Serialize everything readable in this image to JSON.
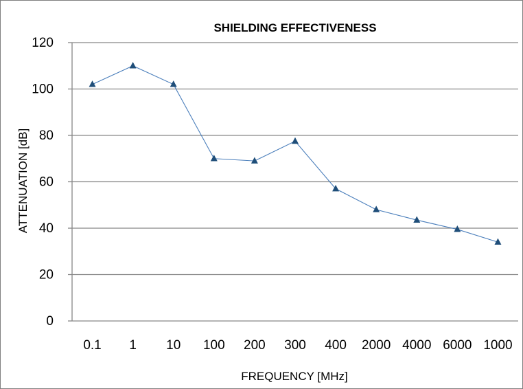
{
  "chart_data": {
    "type": "line",
    "title": "SHIELDING EFFECTIVENESS",
    "xlabel": "FREQUENCY [MHz]",
    "ylabel": "ATTENUATION [dB]",
    "categories": [
      "0.1",
      "1",
      "10",
      "100",
      "200",
      "300",
      "400",
      "2000",
      "4000",
      "6000",
      "1000"
    ],
    "series": [
      {
        "values": [
          102,
          110,
          102,
          70,
          69,
          77.5,
          57,
          48,
          43.5,
          39.5,
          34
        ],
        "color": "#4a7ebb",
        "marker": "triangle",
        "marker_color": "#1f4e79"
      }
    ],
    "ylim": [
      0,
      120
    ],
    "yticks": [
      0,
      20,
      40,
      60,
      80,
      100,
      120
    ],
    "grid": true,
    "legend": "none"
  }
}
